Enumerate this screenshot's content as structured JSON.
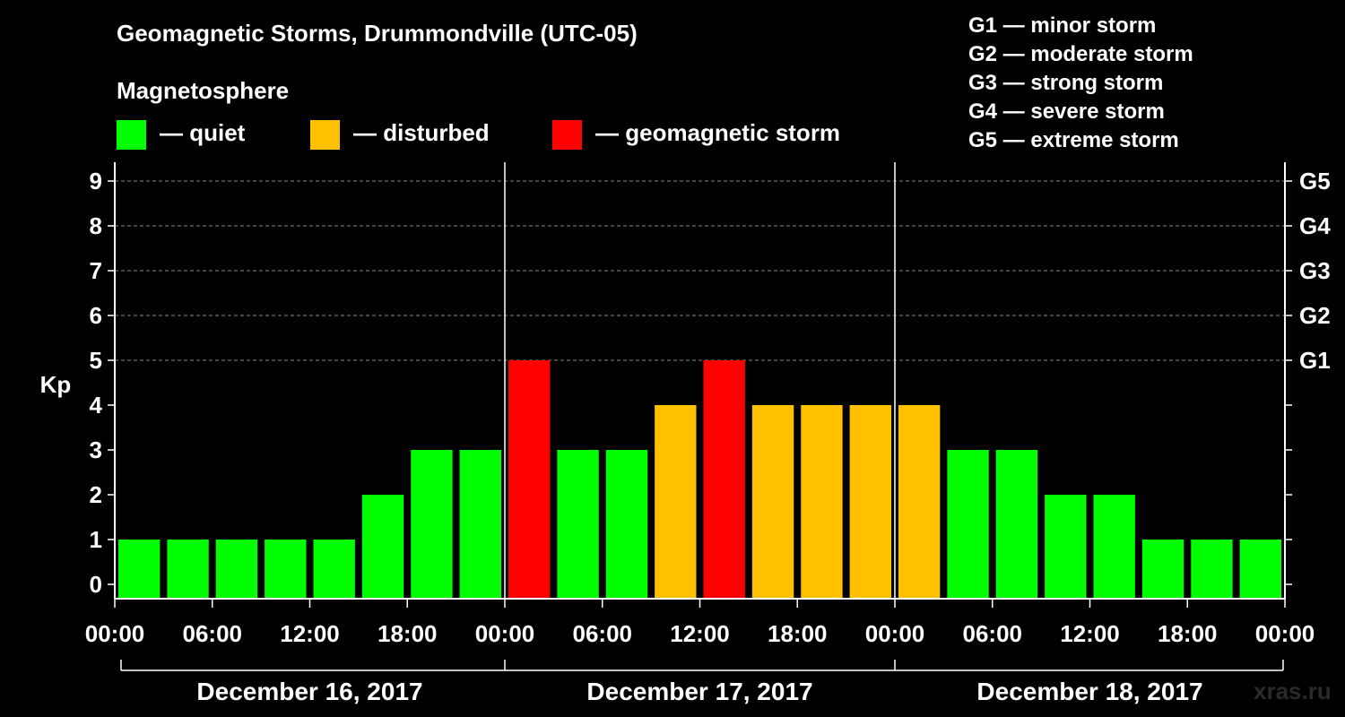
{
  "header": {
    "title": "Geomagnetic Storms, Drummondville (UTC-05)",
    "magnetosphere_label": "Magnetosphere"
  },
  "legend": [
    {
      "label": "— quiet",
      "color": "#00ff00"
    },
    {
      "label": "— disturbed",
      "color": "#ffc000"
    },
    {
      "label": "— geomagnetic storm",
      "color": "#ff0000"
    }
  ],
  "storm_levels": [
    {
      "label": "G1 — minor storm"
    },
    {
      "label": "G2 — moderate storm"
    },
    {
      "label": "G3 — strong storm"
    },
    {
      "label": "G4 — severe storm"
    },
    {
      "label": "G5 — extreme storm"
    }
  ],
  "watermark": "xras.ru",
  "chart_data": {
    "type": "bar",
    "ylabel": "Kp",
    "ylim": [
      0,
      9
    ],
    "yticks": [
      0,
      1,
      2,
      3,
      4,
      5,
      6,
      7,
      8,
      9
    ],
    "right_ticks": [
      {
        "value": 5,
        "label": "G1"
      },
      {
        "value": 6,
        "label": "G2"
      },
      {
        "value": 7,
        "label": "G3"
      },
      {
        "value": 8,
        "label": "G4"
      },
      {
        "value": 9,
        "label": "G5"
      }
    ],
    "grid": "dashed horizontal at Kp 5-9",
    "x_tick_labels": [
      "00:00",
      "06:00",
      "12:00",
      "18:00",
      "00:00",
      "06:00",
      "12:00",
      "18:00",
      "00:00",
      "06:00",
      "12:00",
      "18:00",
      "00:00"
    ],
    "days": [
      "December 16, 2017",
      "December 17, 2017",
      "December 18, 2017"
    ],
    "interval_hours": 3,
    "values": [
      1,
      1,
      1,
      1,
      1,
      2,
      3,
      3,
      5,
      3,
      3,
      4,
      5,
      4,
      4,
      4,
      4,
      3,
      3,
      2,
      2,
      1,
      1,
      1
    ],
    "colors": {
      "quiet": "#00ff00",
      "disturbed": "#ffc000",
      "storm": "#ff0000"
    }
  }
}
